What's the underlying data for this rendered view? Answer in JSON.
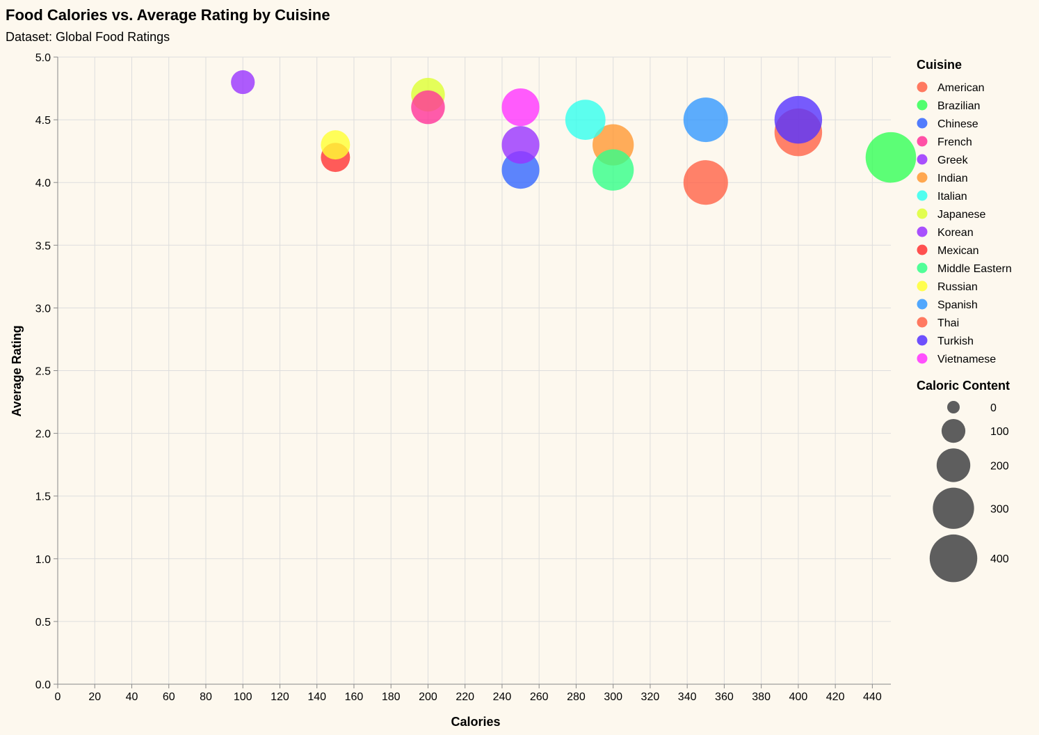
{
  "chart_data": {
    "type": "scatter",
    "title": "Food Calories vs. Average Rating by Cuisine",
    "subtitle": "Dataset: Global Food Ratings",
    "xlabel": "Calories",
    "ylabel": "Average Rating",
    "xlim": [
      0,
      450
    ],
    "ylim": [
      0,
      5
    ],
    "x_ticks": [
      0,
      20,
      40,
      60,
      80,
      100,
      120,
      140,
      160,
      180,
      200,
      220,
      240,
      260,
      280,
      300,
      320,
      340,
      360,
      380,
      400,
      420,
      440
    ],
    "y_ticks": [
      0,
      0.5,
      1,
      1.5,
      2,
      2.5,
      3,
      3.5,
      4,
      4.5,
      5
    ],
    "grid": true,
    "size_field": "Caloric Content",
    "points": [
      {
        "cuisine": "Brazilian",
        "calories": 450,
        "rating": 4.2
      },
      {
        "cuisine": "Thai",
        "calories": 400,
        "rating": 4.4
      },
      {
        "cuisine": "Turkish",
        "calories": 400,
        "rating": 4.5
      },
      {
        "cuisine": "American",
        "calories": 350,
        "rating": 4.0
      },
      {
        "cuisine": "Spanish",
        "calories": 350,
        "rating": 4.5
      },
      {
        "cuisine": "Indian",
        "calories": 300,
        "rating": 4.3
      },
      {
        "cuisine": "Middle Eastern",
        "calories": 300,
        "rating": 4.1
      },
      {
        "cuisine": "Italian",
        "calories": 285,
        "rating": 4.5
      },
      {
        "cuisine": "Chinese",
        "calories": 250,
        "rating": 4.1
      },
      {
        "cuisine": "Korean",
        "calories": 250,
        "rating": 4.3
      },
      {
        "cuisine": "Vietnamese",
        "calories": 250,
        "rating": 4.6
      },
      {
        "cuisine": "Japanese",
        "calories": 200,
        "rating": 4.7
      },
      {
        "cuisine": "French",
        "calories": 200,
        "rating": 4.6
      },
      {
        "cuisine": "Mexican",
        "calories": 150,
        "rating": 4.2
      },
      {
        "cuisine": "Russian",
        "calories": 150,
        "rating": 4.3
      },
      {
        "cuisine": "Greek",
        "calories": 100,
        "rating": 4.8
      }
    ],
    "legend": {
      "color_title": "Cuisine",
      "color_entries": [
        {
          "label": "American",
          "color": "#ff6347"
        },
        {
          "label": "Brazilian",
          "color": "#33ff57"
        },
        {
          "label": "Chinese",
          "color": "#3366ff"
        },
        {
          "label": "French",
          "color": "#ff3399"
        },
        {
          "label": "Greek",
          "color": "#9933ff"
        },
        {
          "label": "Indian",
          "color": "#ff9933"
        },
        {
          "label": "Italian",
          "color": "#33ffee"
        },
        {
          "label": "Japanese",
          "color": "#ddff33"
        },
        {
          "label": "Korean",
          "color": "#9933ff"
        },
        {
          "label": "Mexican",
          "color": "#ff3333"
        },
        {
          "label": "Middle Eastern",
          "color": "#33ff88"
        },
        {
          "label": "Russian",
          "color": "#ffff33"
        },
        {
          "label": "Spanish",
          "color": "#3399ff"
        },
        {
          "label": "Thai",
          "color": "#ff6347"
        },
        {
          "label": "Turkish",
          "color": "#5533ff"
        },
        {
          "label": "Vietnamese",
          "color": "#ff33ff"
        }
      ],
      "size_title": "Caloric Content",
      "size_entries": [
        0,
        100,
        200,
        300,
        400
      ],
      "placement": "right"
    }
  }
}
